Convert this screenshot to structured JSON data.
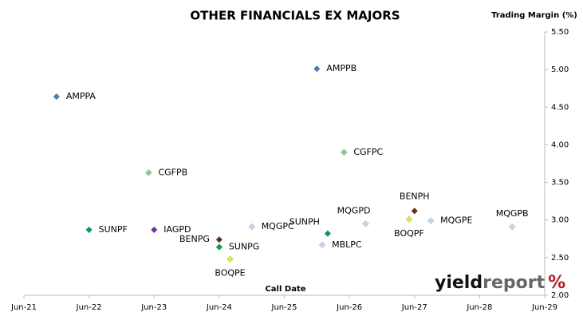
{
  "chart_data": {
    "type": "scatter",
    "title": "OTHER FINANCIALS EX MAJORS",
    "y_label": "Trading Margin (%)",
    "x_label": "Call Date",
    "logo": [
      "yield",
      "report",
      "%"
    ],
    "labels": [
      "AMPPA",
      "AMPPB",
      "CGFPC",
      "CGFPB",
      "SUNPF",
      "IAGPD",
      "BENPG",
      "SUNPG",
      "BOQPE",
      "MQGPC",
      "SUNPH",
      "MBLPC",
      "MQGPD",
      "BENPH",
      "BOQPF",
      "MQGPE",
      "MQGPB"
    ],
    "x": [
      "Dec-21",
      "Dec-25",
      "May-26",
      "May-23",
      "Jun-22",
      "Jun-23",
      "Jun-24",
      "Jun-24",
      "Aug-24",
      "Dec-24",
      "Feb-26",
      "Jan-26",
      "Sep-26",
      "Jun-27",
      "May-27",
      "Sep-27",
      "Dec-28"
    ],
    "values": [
      4.64,
      5.01,
      3.9,
      3.63,
      2.87,
      2.87,
      2.74,
      2.64,
      2.48,
      2.91,
      2.82,
      2.67,
      2.95,
      3.12,
      3.01,
      2.99,
      2.91
    ],
    "colors": [
      "#4a7ebb",
      "#4a7ebb",
      "#8fc98f",
      "#8fc98f",
      "#00a050",
      "#7030a0",
      "#6b2a1a",
      "#00a050",
      "#e6e640",
      "#c5d5ee",
      "#00a050",
      "#c5d5ee",
      "#c5d5ee",
      "#6b2a1a",
      "#e6e640",
      "#c5d5ee",
      "#c5d5ee"
    ],
    "xlim": [
      "Jun-21",
      "Jun-29"
    ],
    "xticks": [
      "Jun-21",
      "Jun-22",
      "Jun-23",
      "Jun-24",
      "Jun-25",
      "Jun-26",
      "Jun-27",
      "Jun-28",
      "Jun-29"
    ],
    "ylim": [
      2,
      5.5
    ],
    "yticks": [
      {
        "value": 2,
        "label": "2.00"
      },
      {
        "value": 2.5,
        "label": "2.50"
      },
      {
        "value": 3,
        "label": "3.00"
      },
      {
        "value": 3.5,
        "label": "3.50"
      },
      {
        "value": 4,
        "label": "4.00"
      },
      {
        "value": 4.5,
        "label": "4.50"
      },
      {
        "value": 5,
        "label": "5.00"
      },
      {
        "value": 5.5,
        "label": "5.50"
      }
    ],
    "grid": false
  }
}
